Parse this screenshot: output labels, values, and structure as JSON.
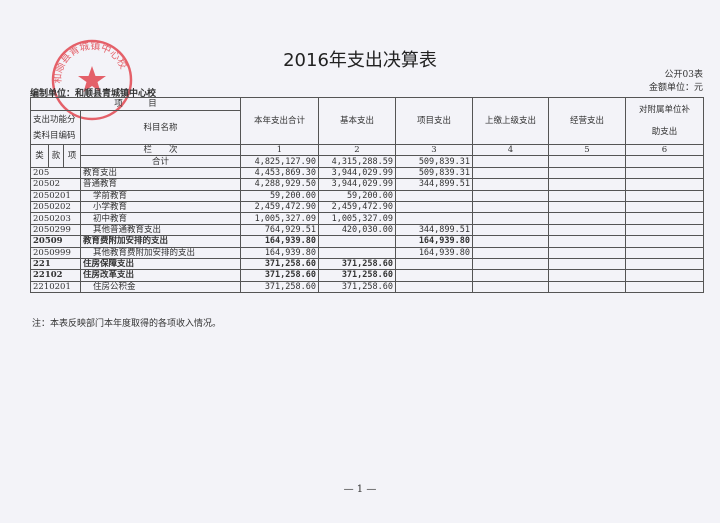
{
  "title": "2016年支出决算表",
  "form_no": "公开03表",
  "unit": "金额单位：元",
  "org": "编制单位：和顺县青城镇中心校",
  "stamp_text": "和顺县青城镇中心校",
  "header": {
    "item": "项　　　目",
    "code_label": "支出功能分类科目编码",
    "name_label": "科目名称",
    "lei": "类",
    "kuan": "款",
    "xiang": "项",
    "lanci": "栏　　次",
    "total_label": "合计",
    "cols": [
      "本年支出合计",
      "基本支出",
      "项目支出",
      "上缴上级支出",
      "经营支出",
      "对附属单位补助支出"
    ],
    "col_nums": [
      "1",
      "2",
      "3",
      "4",
      "5",
      "6"
    ]
  },
  "totals": [
    "4,825,127.90",
    "4,315,288.59",
    "509,839.31",
    "",
    "",
    ""
  ],
  "rows": [
    {
      "code": "205",
      "name": "教育支出",
      "indent": false,
      "bold": false,
      "v": [
        "4,453,869.30",
        "3,944,029.99",
        "509,839.31",
        "",
        "",
        ""
      ]
    },
    {
      "code": "20502",
      "name": "普通教育",
      "indent": false,
      "bold": false,
      "v": [
        "4,288,929.50",
        "3,944,029.99",
        "344,899.51",
        "",
        "",
        ""
      ]
    },
    {
      "code": "2050201",
      "name": "学前教育",
      "indent": true,
      "bold": false,
      "v": [
        "59,200.00",
        "59,200.00",
        "",
        "",
        "",
        ""
      ]
    },
    {
      "code": "2050202",
      "name": "小学教育",
      "indent": true,
      "bold": false,
      "v": [
        "2,459,472.90",
        "2,459,472.90",
        "",
        "",
        "",
        ""
      ]
    },
    {
      "code": "2050203",
      "name": "初中教育",
      "indent": true,
      "bold": false,
      "v": [
        "1,005,327.09",
        "1,005,327.09",
        "",
        "",
        "",
        ""
      ]
    },
    {
      "code": "2050299",
      "name": "其他普通教育支出",
      "indent": true,
      "bold": false,
      "v": [
        "764,929.51",
        "420,030.00",
        "344,899.51",
        "",
        "",
        ""
      ]
    },
    {
      "code": "20509",
      "name": "教育费附加安排的支出",
      "indent": false,
      "bold": true,
      "v": [
        "164,939.80",
        "",
        "164,939.80",
        "",
        "",
        ""
      ]
    },
    {
      "code": "2050999",
      "name": "其他教育费附加安排的支出",
      "indent": true,
      "bold": false,
      "v": [
        "164,939.80",
        "",
        "164,939.80",
        "",
        "",
        ""
      ]
    },
    {
      "code": "221",
      "name": "住房保障支出",
      "indent": false,
      "bold": true,
      "v": [
        "371,258.60",
        "371,258.60",
        "",
        "",
        "",
        ""
      ]
    },
    {
      "code": "22102",
      "name": "住房改革支出",
      "indent": false,
      "bold": true,
      "v": [
        "371,258.60",
        "371,258.60",
        "",
        "",
        "",
        ""
      ]
    },
    {
      "code": "2210201",
      "name": "住房公积金",
      "indent": true,
      "bold": false,
      "v": [
        "371,258.60",
        "371,258.60",
        "",
        "",
        "",
        ""
      ]
    }
  ],
  "note": "注：本表反映部门本年度取得的各项收入情况。",
  "page": "— 1 —",
  "colors": {
    "stamp": "#e0303a",
    "background": "#f3f3f8"
  }
}
